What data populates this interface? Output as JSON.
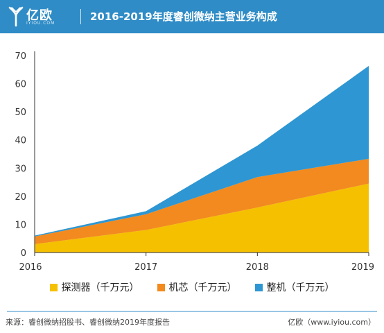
{
  "header": {
    "logo_text": "亿欧",
    "logo_sub": "IYIOU.COM",
    "title": "2016-2019年度睿创微纳主营业务构成",
    "bg_color": "#2f8cc6"
  },
  "chart_data": {
    "type": "area",
    "stacked": true,
    "title": "2016-2019年度睿创微纳主营业务构成",
    "xlabel": "",
    "ylabel": "",
    "categories": [
      "2016",
      "2017",
      "2018",
      "2019"
    ],
    "yticks": [
      "0",
      "10",
      "20",
      "30",
      "40",
      "50",
      "60",
      "70"
    ],
    "ylim": [
      0,
      70
    ],
    "grid": false,
    "legend_position": "bottom",
    "series": [
      {
        "name": "探测器（千万元）",
        "color": "#f5c000",
        "values": [
          3,
          8,
          16,
          24.5
        ]
      },
      {
        "name": "机芯（千万元）",
        "color": "#f28a1f",
        "values": [
          2.7,
          5.6,
          10.8,
          8.8
        ]
      },
      {
        "name": "整机（千万元）",
        "color": "#2e96d2",
        "values": [
          0.3,
          1.1,
          11.2,
          33
        ]
      }
    ]
  },
  "footer": {
    "source": "来源：睿创微纳招股书、睿创微纳2019年度报告",
    "brand": "亿欧（www.iyiou.com）"
  }
}
